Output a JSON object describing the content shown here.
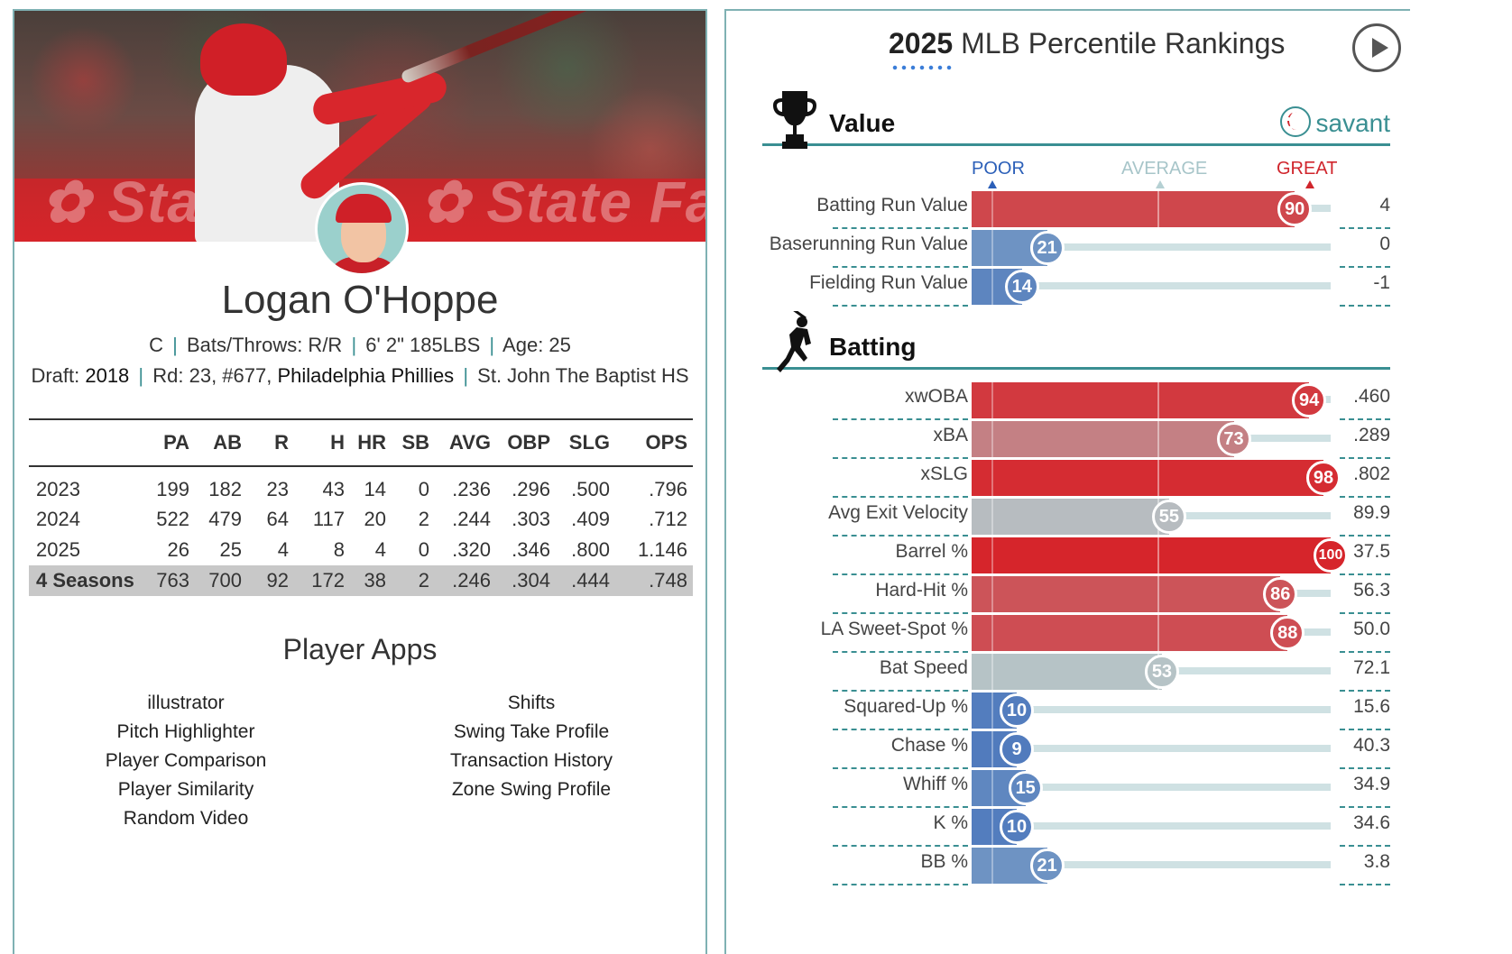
{
  "player": {
    "name": "Logan O'Hoppe",
    "position": "C",
    "bats_throws": "Bats/Throws: R/R",
    "height_weight": "6' 2\" 185LBS",
    "age": "Age: 25",
    "draft_label": "Draft: ",
    "draft_year": "2018",
    "draft_round": "Rd: 23, #677,",
    "draft_team": "Philadelphia Phillies",
    "school": "St. John The Baptist HS"
  },
  "stats": {
    "headers": [
      "",
      "PA",
      "AB",
      "R",
      "H",
      "HR",
      "SB",
      "AVG",
      "OBP",
      "SLG",
      "OPS"
    ],
    "rows": [
      [
        "2023",
        "199",
        "182",
        "23",
        "43",
        "14",
        "0",
        ".236",
        ".296",
        ".500",
        ".796"
      ],
      [
        "2024",
        "522",
        "479",
        "64",
        "117",
        "20",
        "2",
        ".244",
        ".303",
        ".409",
        ".712"
      ],
      [
        "2025",
        "26",
        "25",
        "4",
        "8",
        "4",
        "0",
        ".320",
        ".346",
        ".800",
        "1.146"
      ]
    ],
    "total": [
      "4 Seasons",
      "763",
      "700",
      "92",
      "172",
      "38",
      "2",
      ".246",
      ".304",
      ".444",
      ".748"
    ]
  },
  "apps": {
    "title": "Player Apps",
    "col1": [
      "illustrator",
      "Pitch Highlighter",
      "Player Comparison",
      "Player Similarity",
      "Random Video"
    ],
    "col2": [
      "Shifts",
      "Swing Take Profile",
      "Transaction History",
      "Zone Swing Profile"
    ]
  },
  "rankings": {
    "title_year": "2025",
    "title_rest": " MLB Percentile Rankings",
    "scale": {
      "poor": "POOR",
      "average": "AVERAGE",
      "great": "GREAT"
    },
    "savant_label": "savant",
    "colors": {
      "teal": "#3a8f92",
      "blue": "#2b5fb8",
      "red": "#d0252c"
    },
    "sections": [
      {
        "name": "Value",
        "icon": "trophy-icon",
        "metrics": [
          {
            "label": "Batting Run Value",
            "percentile": 90,
            "value": "4"
          },
          {
            "label": "Baserunning Run Value",
            "percentile": 21,
            "value": "0"
          },
          {
            "label": "Fielding Run Value",
            "percentile": 14,
            "value": "-1"
          }
        ]
      },
      {
        "name": "Batting",
        "icon": "batter-icon",
        "metrics": [
          {
            "label": "xwOBA",
            "percentile": 94,
            "value": ".460"
          },
          {
            "label": "xBA",
            "percentile": 73,
            "value": ".289"
          },
          {
            "label": "xSLG",
            "percentile": 98,
            "value": ".802"
          },
          {
            "label": "Avg Exit Velocity",
            "percentile": 55,
            "value": "89.9"
          },
          {
            "label": "Barrel %",
            "percentile": 100,
            "value": "37.5"
          },
          {
            "label": "Hard-Hit %",
            "percentile": 86,
            "value": "56.3"
          },
          {
            "label": "LA Sweet-Spot %",
            "percentile": 88,
            "value": "50.0"
          },
          {
            "label": "Bat Speed",
            "percentile": 53,
            "value": "72.1"
          },
          {
            "label": "Squared-Up %",
            "percentile": 10,
            "value": "15.6"
          },
          {
            "label": "Chase %",
            "percentile": 9,
            "value": "40.3"
          },
          {
            "label": "Whiff %",
            "percentile": 15,
            "value": "34.9"
          },
          {
            "label": "K %",
            "percentile": 10,
            "value": "34.6"
          },
          {
            "label": "BB %",
            "percentile": 21,
            "value": "3.8"
          }
        ]
      }
    ]
  }
}
